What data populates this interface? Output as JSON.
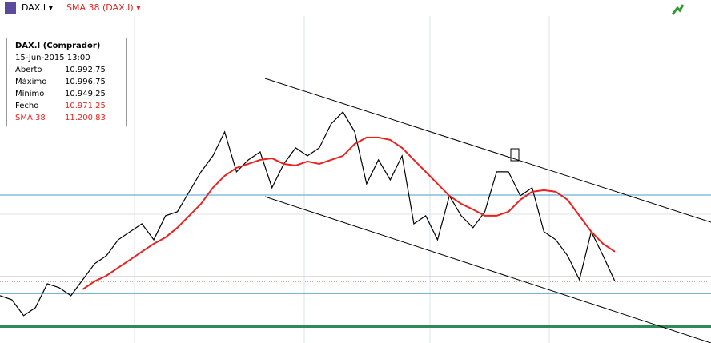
{
  "header": {
    "symbol": "DAX.I",
    "indicator": "SMA 38 (DAX.I)"
  },
  "info_panel": {
    "title": "DAX.I (Comprador)",
    "date": "15-Jun-2015 13:00",
    "rows": [
      [
        "Aberto",
        "10.992,75"
      ],
      [
        "Máximo",
        "10.996,75"
      ],
      [
        "Mínimo",
        "10.949,25"
      ],
      [
        "Fecho",
        "10.971,25"
      ],
      [
        "SMA 38",
        "11.200,83"
      ]
    ]
  },
  "chart_data": {
    "type": "line",
    "ylim": [
      10465,
      13280
    ],
    "series": [
      {
        "name": "DAX.I",
        "color": "#000000",
        "values": [
          10853,
          10820,
          10689,
          10755,
          10951,
          10919,
          10853,
          10984,
          11115,
          11181,
          11312,
          11378,
          11443,
          11312,
          11509,
          11542,
          11706,
          11870,
          12001,
          12198,
          11870,
          11968,
          12034,
          11739,
          11935,
          12067,
          12001,
          12067,
          12263,
          12362,
          12198,
          11771,
          11968,
          11804,
          12001,
          11443,
          11509,
          11312,
          11673,
          11509,
          11411,
          11542,
          11870,
          11870,
          11673,
          11739,
          11378,
          11312,
          11181,
          10984,
          11378,
          11181,
          10971
        ]
      },
      {
        "name": "SMA 38 (DAX.I)",
        "color": "#e8231f",
        "values": [
          null,
          null,
          null,
          null,
          null,
          null,
          null,
          10905,
          10971,
          11017,
          11083,
          11148,
          11214,
          11279,
          11332,
          11411,
          11509,
          11607,
          11739,
          11837,
          11903,
          11935,
          11968,
          11981,
          11935,
          11922,
          11955,
          11935,
          11968,
          12001,
          12099,
          12152,
          12152,
          12132,
          12067,
          11968,
          11870,
          11771,
          11673,
          11607,
          11561,
          11509,
          11509,
          11542,
          11640,
          11706,
          11719,
          11706,
          11640,
          11509,
          11378,
          11279,
          11214
        ]
      }
    ]
  }
}
